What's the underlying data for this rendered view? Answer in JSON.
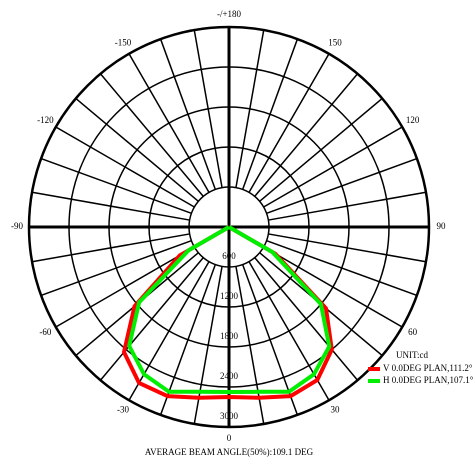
{
  "chart_data": {
    "type": "polar",
    "title": "AVERAGE BEAM ANGLE(50%):109.1 DEG",
    "unit_label": "UNIT:cd",
    "x": [
      -90,
      -80,
      -70,
      -60,
      -50,
      -40,
      -30,
      -20,
      -10,
      0,
      10,
      20,
      30,
      40,
      50,
      60,
      70,
      80,
      90
    ],
    "series": [
      {
        "name": "V 0.0DEG PLAN,111.2°",
        "color": "#ff0000",
        "values": [
          0,
          0,
          0,
          850,
          1850,
          2450,
          2700,
          2700,
          2600,
          2550,
          2600,
          2700,
          2650,
          2400,
          1900,
          800,
          0,
          0,
          0
        ]
      },
      {
        "name": "H 0.0DEG PLAN,107.1°",
        "color": "#00ee00",
        "values": [
          0,
          0,
          0,
          700,
          1760,
          2330,
          2550,
          2630,
          2510,
          2475,
          2510,
          2630,
          2550,
          2340,
          1800,
          750,
          0,
          0,
          0
        ]
      }
    ],
    "rlim": [
      0,
      3000
    ],
    "rticks": [
      600,
      1200,
      1800,
      2400,
      3000
    ],
    "angle_ticks": [
      -150,
      -120,
      -90,
      -60,
      -30,
      0,
      30,
      60,
      90,
      120,
      150,
      {
        "value": 180,
        "label": "-/+180"
      }
    ]
  }
}
